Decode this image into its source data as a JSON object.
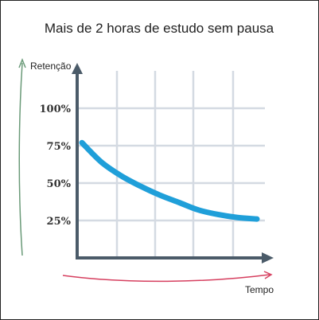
{
  "chart_data": {
    "type": "line",
    "title": "Mais de 2 horas de estudo sem pausa",
    "xlabel": "Tempo",
    "ylabel": "Retenção",
    "ylim": [
      0,
      125
    ],
    "y_ticks": [
      {
        "value": 100,
        "label": "100%"
      },
      {
        "value": 75,
        "label": "75%"
      },
      {
        "value": 50,
        "label": "50%"
      },
      {
        "value": 25,
        "label": "25%"
      }
    ],
    "grid": true,
    "series": [
      {
        "x": [
          0,
          1,
          2,
          3,
          4,
          5,
          6,
          7,
          8,
          9
        ],
        "values": [
          77,
          64,
          55,
          48,
          42,
          37,
          32,
          29,
          27,
          26
        ]
      }
    ]
  },
  "colors": {
    "axis": "#4b5b69",
    "grid": "#d4dae2",
    "curve": "#1f9fd9",
    "ylabel_arrow": "#6a9a78",
    "xlabel_arrow": "#d63f5f",
    "text": "#222222"
  }
}
